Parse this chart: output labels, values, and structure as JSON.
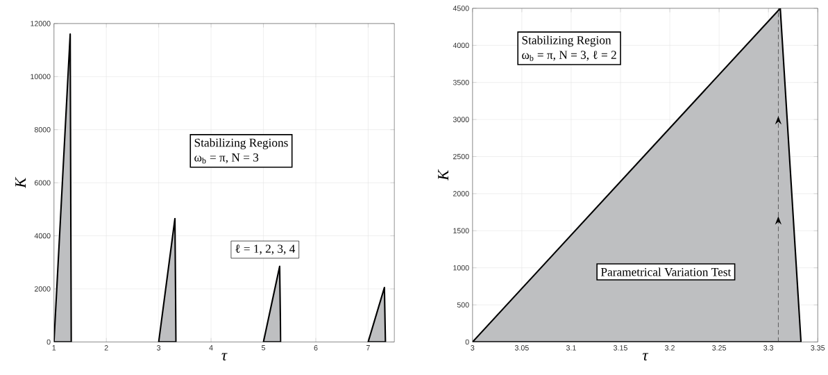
{
  "chart_data": [
    {
      "type": "area",
      "xlabel": "τ",
      "ylabel": "K",
      "xlim": [
        1,
        7.5
      ],
      "ylim": [
        0,
        12000
      ],
      "xticks": [
        1,
        2,
        3,
        4,
        5,
        6,
        7
      ],
      "yticks": [
        0,
        2000,
        4000,
        6000,
        8000,
        10000,
        12000
      ],
      "grid": true,
      "series": [
        {
          "color": "#bebfc1",
          "x": [
            1,
            1.31,
            1.33
          ],
          "values": [
            0,
            11600,
            0
          ]
        },
        {
          "color": "#bebfc1",
          "x": [
            3,
            3.31,
            3.33
          ],
          "values": [
            0,
            4650,
            0
          ]
        },
        {
          "color": "#bebfc1",
          "x": [
            5,
            5.31,
            5.33
          ],
          "values": [
            0,
            2850,
            0
          ]
        },
        {
          "color": "#bebfc1",
          "x": [
            7,
            7.31,
            7.33
          ],
          "values": [
            0,
            2050,
            0
          ]
        }
      ],
      "annotations": [
        "Stabilizing Regions",
        "ω$_{b}$ = π, N = 3",
        "ℓ = 1, 2, 3, 4"
      ]
    },
    {
      "type": "area",
      "xlabel": "τ",
      "ylabel": "K",
      "xlim": [
        3,
        3.35
      ],
      "ylim": [
        0,
        4500
      ],
      "xticks": [
        3,
        3.05,
        3.1,
        3.15,
        3.2,
        3.25,
        3.3,
        3.35
      ],
      "yticks": [
        0,
        500,
        1000,
        1500,
        2000,
        2500,
        3000,
        3500,
        4000,
        4500
      ],
      "grid": true,
      "series": [
        {
          "color": "#bebfc1",
          "x": [
            3,
            3.312,
            3.333
          ],
          "values": [
            0,
            4500,
            0
          ]
        }
      ],
      "ref_lines": [
        {
          "axis": "x",
          "value": 3.31,
          "color": "#333333",
          "line_style": "dashed"
        }
      ],
      "annotations": [
        "Stabilizing Region",
        "ω$_{b}$ = π, N = 3, ℓ = 2",
        "Parametrical Variation Test"
      ]
    }
  ]
}
